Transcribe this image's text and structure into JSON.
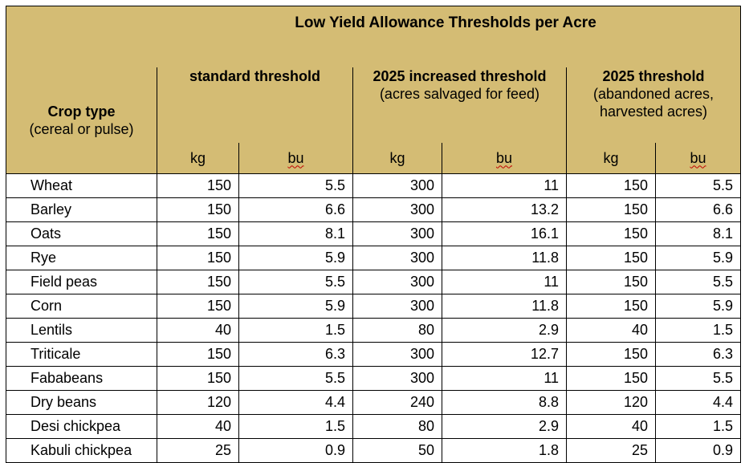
{
  "table": {
    "title": "Low Yield Allowance Thresholds per Acre",
    "crop_header": {
      "line1": "Crop type",
      "line2": "(cereal or pulse)"
    },
    "groups": [
      {
        "line1": "standard threshold",
        "line2": "",
        "line3": ""
      },
      {
        "line1": "2025 increased threshold",
        "line2": "(acres salvaged for feed)",
        "line3": ""
      },
      {
        "line1": "2025 threshold",
        "line2": "(abandoned acres,",
        "line3": "harvested acres)"
      }
    ],
    "units": [
      "kg",
      "bu",
      "kg",
      "bu",
      "kg",
      "bu"
    ],
    "rows": [
      {
        "crop": "Wheat",
        "values": [
          "150",
          "5.5",
          "300",
          "11",
          "150",
          "5.5"
        ]
      },
      {
        "crop": "Barley",
        "values": [
          "150",
          "6.6",
          "300",
          "13.2",
          "150",
          "6.6"
        ]
      },
      {
        "crop": "Oats",
        "values": [
          "150",
          "8.1",
          "300",
          "16.1",
          "150",
          "8.1"
        ]
      },
      {
        "crop": "Rye",
        "values": [
          "150",
          "5.9",
          "300",
          "11.8",
          "150",
          "5.9"
        ]
      },
      {
        "crop": "Field peas",
        "values": [
          "150",
          "5.5",
          "300",
          "11",
          "150",
          "5.5"
        ]
      },
      {
        "crop": "Corn",
        "values": [
          "150",
          "5.9",
          "300",
          "11.8",
          "150",
          "5.9"
        ]
      },
      {
        "crop": "Lentils",
        "values": [
          "40",
          "1.5",
          "80",
          "2.9",
          "40",
          "1.5"
        ]
      },
      {
        "crop": "Triticale",
        "values": [
          "150",
          "6.3",
          "300",
          "12.7",
          "150",
          "6.3"
        ]
      },
      {
        "crop": "Fababeans",
        "values": [
          "150",
          "5.5",
          "300",
          "11",
          "150",
          "5.5"
        ]
      },
      {
        "crop": "Dry beans",
        "values": [
          "120",
          "4.4",
          "240",
          "8.8",
          "120",
          "4.4"
        ]
      },
      {
        "crop": "Desi chickpea",
        "values": [
          "40",
          "1.5",
          "80",
          "2.9",
          "40",
          "1.5"
        ]
      },
      {
        "crop": "Kabuli chickpea",
        "values": [
          "25",
          "0.9",
          "50",
          "1.8",
          "25",
          "0.9"
        ]
      }
    ],
    "colors": {
      "header_bg": "#d4bc74",
      "border": "#000000"
    }
  }
}
